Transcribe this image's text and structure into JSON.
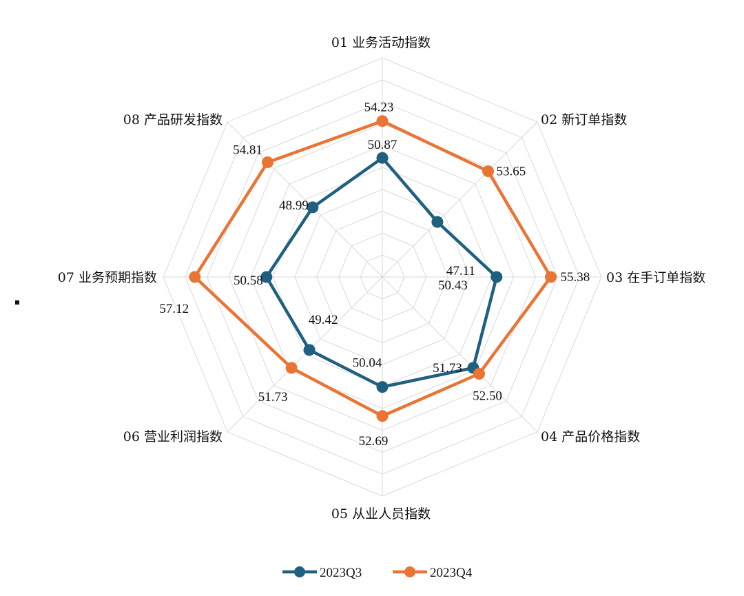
{
  "chart_data": {
    "type": "radar",
    "title": "",
    "categories": [
      "01 业务活动指数",
      "02 新订单指数",
      "03 在手订单指数",
      "04 产品价格指数",
      "05 从业人员指数",
      "06 营业利润指数",
      "07 业务预期指数",
      "08 产品研发指数"
    ],
    "series": [
      {
        "name": "2023Q3",
        "color": "#1f5f80",
        "values": [
          50.87,
          47.11,
          50.43,
          51.73,
          50.04,
          49.42,
          50.58,
          48.99
        ],
        "labels": [
          "50.87",
          "47.11",
          "50.43",
          "51.73",
          "50.04",
          "49.42",
          "50.58",
          "48.99"
        ]
      },
      {
        "name": "2023Q4",
        "color": "#ea7434",
        "values": [
          54.23,
          53.65,
          55.38,
          52.5,
          52.69,
          51.73,
          57.12,
          54.81
        ],
        "labels": [
          "54.23",
          "53.65",
          "55.38",
          "52.50",
          "52.69",
          "51.73",
          "57.12",
          "54.81"
        ]
      }
    ],
    "range": [
      40,
      60
    ],
    "grid": true,
    "legend": "bottom"
  }
}
